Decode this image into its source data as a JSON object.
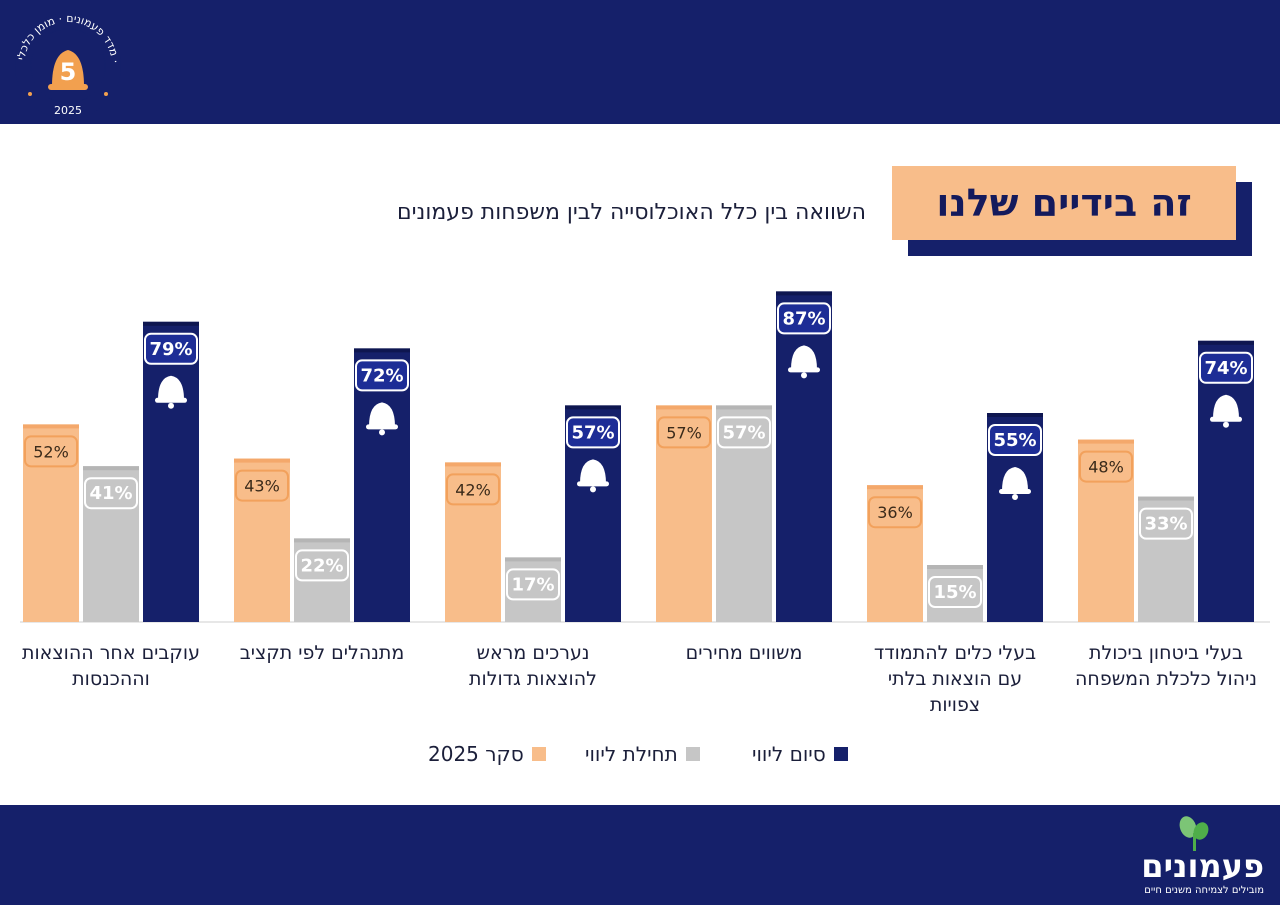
{
  "badge": {
    "number": "5",
    "ring_text": "מדד פעמונים · מומן כלכלי ·",
    "year": "2025"
  },
  "title": "זה בידיים שלנו",
  "subtitle": "השוואה בין כלל האוכלוסייה לבין משפחות פעמונים",
  "brand": {
    "name": "פעמונים",
    "tagline": "מובילים לצמיחה משנים חיים"
  },
  "colors": {
    "orange": "#f8bd8a",
    "gray": "#c6c6c6",
    "navy": "#15206a",
    "band": "#15206a"
  },
  "chart_data": {
    "type": "bar",
    "categories": [
      "בעלי ביטחון ביכולת ניהול כלכלת המשפחה",
      "בעלי כלים להתמודד עם הוצאות בלתי צפויות",
      "משווים מחירים",
      "נערכים מראש להוצאות גדולות",
      "מתנהלים לפי תקציב",
      "עוקבים אחר ההוצאות וההכנסות"
    ],
    "series": [
      {
        "name": "סקר 2025",
        "values": [
          48,
          36,
          57,
          42,
          43,
          52
        ]
      },
      {
        "name": "תחילת ליווי",
        "values": [
          33,
          15,
          57,
          17,
          22,
          41
        ]
      },
      {
        "name": "סיום ליווי",
        "values": [
          74,
          55,
          87,
          57,
          72,
          79
        ]
      }
    ],
    "ylim": [
      0,
      100
    ],
    "grid": false,
    "legend_position": "bottom",
    "value_format": "{v}%",
    "markers": {
      "series": "סיום ליווי",
      "icon": "bell-icon"
    }
  },
  "category_label_lines": [
    [
      "בעלי ביטחון ביכולת",
      "ניהול כלכלת המשפחה"
    ],
    [
      "בעלי כלים להתמודד",
      "עם הוצאות בלתי",
      "צפויות"
    ],
    [
      "משווים מחירים"
    ],
    [
      "נערכים מראש",
      "להוצאות גדולות"
    ],
    [
      "מתנהלים לפי תקציב"
    ],
    [
      "עוקבים אחר ההוצאות",
      "וההכנסות"
    ]
  ]
}
